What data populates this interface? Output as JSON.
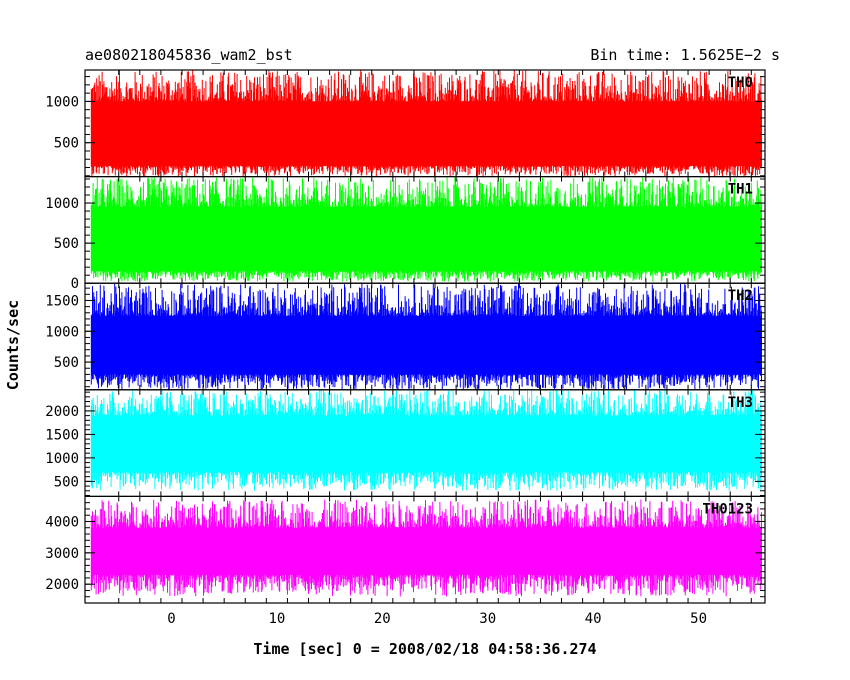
{
  "chart_data": {
    "type": "line",
    "title_left": "ae080218045836_wam2_bst",
    "title_right": "Bin time: 1.5625E−2 s",
    "xlabel": "Time [sec] 0 = 2008/02/18 04:58:36.274",
    "ylabel": "Counts/sec",
    "xlim": [
      -8.2,
      56.3
    ],
    "x_ticks": [
      0,
      10,
      20,
      30,
      40,
      50
    ],
    "x_tick_labels": [
      "0",
      "10",
      "20",
      "30",
      "40",
      "50"
    ],
    "x_data_range": [
      -7.6,
      56.0
    ],
    "bin_time": 0.015625,
    "grid": false,
    "panels": [
      {
        "name": "TH0",
        "color": "#ff0000",
        "ylim": [
          90,
          1380
        ],
        "y_ticks": [
          500,
          1000
        ],
        "y_tick_labels": [
          "500",
          "1000"
        ],
        "envelope_low": 90,
        "envelope_high": 1380,
        "typical_band": [
          220,
          1000
        ]
      },
      {
        "name": "TH1",
        "color": "#00ff00",
        "ylim": [
          0,
          1330
        ],
        "y_ticks": [
          0,
          500,
          1000
        ],
        "y_tick_labels": [
          "0",
          "500",
          "1000"
        ],
        "envelope_low": 20,
        "envelope_high": 1330,
        "typical_band": [
          150,
          950
        ]
      },
      {
        "name": "TH2",
        "color": "#0000ff",
        "ylim": [
          50,
          1780
        ],
        "y_ticks": [
          500,
          1000,
          1500
        ],
        "y_tick_labels": [
          "500",
          "1000",
          "1500"
        ],
        "envelope_low": 50,
        "envelope_high": 1780,
        "typical_band": [
          300,
          1250
        ]
      },
      {
        "name": "TH3",
        "color": "#00ffff",
        "ylim": [
          180,
          2450
        ],
        "y_ticks": [
          500,
          1000,
          1500,
          2000
        ],
        "y_tick_labels": [
          "500",
          "1000",
          "1500",
          "2000"
        ],
        "envelope_low": 300,
        "envelope_high": 2450,
        "typical_band": [
          700,
          1900
        ]
      },
      {
        "name": "TH0123",
        "color": "#ff00ff",
        "ylim": [
          1400,
          4800
        ],
        "y_ticks": [
          2000,
          3000,
          4000
        ],
        "y_tick_labels": [
          "2000",
          "3000",
          "4000"
        ],
        "envelope_low": 1600,
        "envelope_high": 4700,
        "typical_band": [
          2300,
          3800
        ]
      }
    ]
  }
}
